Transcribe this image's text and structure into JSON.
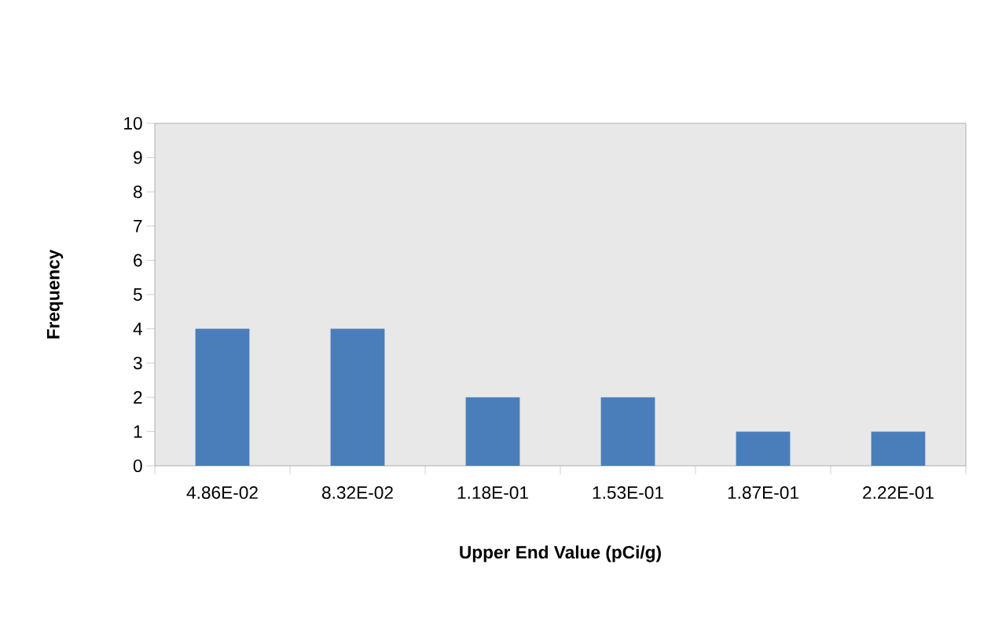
{
  "chart_data": {
    "type": "bar",
    "xlabel": "Upper End Value (pCi/g)",
    "ylabel": "Frequency",
    "categories": [
      "4.86E-02",
      "8.32E-02",
      "1.18E-01",
      "1.53E-01",
      "1.87E-01",
      "2.22E-01"
    ],
    "values": [
      4,
      4,
      2,
      2,
      1,
      1
    ],
    "color": "#4a7ebb",
    "ylim": [
      0,
      10
    ],
    "yticks": [
      0,
      1,
      2,
      3,
      4,
      5,
      6,
      7,
      8,
      9,
      10
    ],
    "grid": false
  }
}
